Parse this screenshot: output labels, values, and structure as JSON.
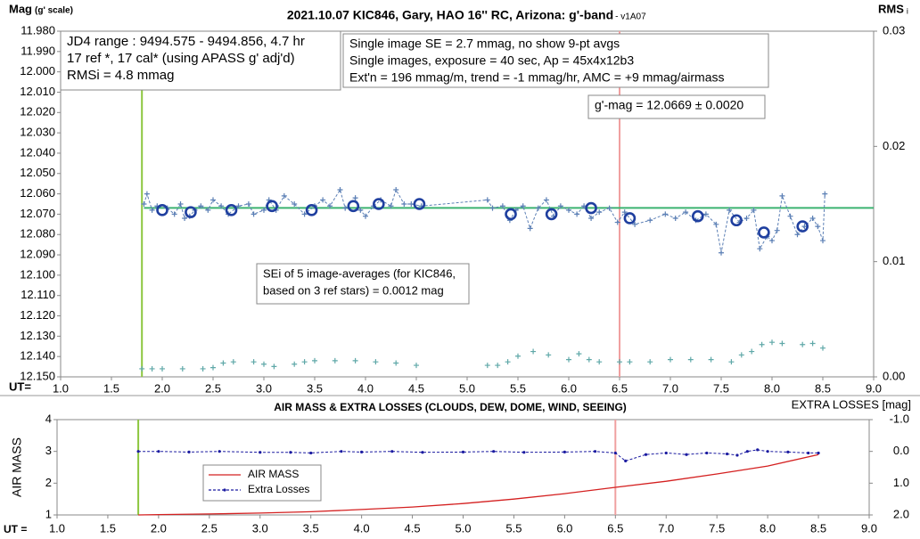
{
  "chart_data": [
    {
      "type": "line",
      "title": "2021.10.07 KIC846, Gary, HAO 16'' RC, Arizona: g'-band",
      "subtitle": " - v1A07",
      "ylabel": "Mag",
      "ylabel_note": "(g' scale)",
      "y2label": "RMS",
      "y2label_note": "i",
      "xlabel": "UT=",
      "xlim": [
        1.0,
        9.0
      ],
      "xticks": [
        {
          "value": 1.0,
          "label": "1.0"
        },
        {
          "value": 1.5,
          "label": "1.5"
        },
        {
          "value": 2.0,
          "label": "2.0"
        },
        {
          "value": 2.5,
          "label": "2.5"
        },
        {
          "value": 3.0,
          "label": "3.0"
        },
        {
          "value": 3.5,
          "label": "3.5"
        },
        {
          "value": 4.0,
          "label": "4.0"
        },
        {
          "value": 4.5,
          "label": "4.5"
        },
        {
          "value": 5.0,
          "label": "5.0"
        },
        {
          "value": 5.5,
          "label": "5.5"
        },
        {
          "value": 6.0,
          "label": "6.0"
        },
        {
          "value": 6.5,
          "label": "6.5"
        },
        {
          "value": 7.0,
          "label": "7.0"
        },
        {
          "value": 7.5,
          "label": "7.5"
        },
        {
          "value": 8.0,
          "label": "8.0"
        },
        {
          "value": 8.5,
          "label": "8.5"
        },
        {
          "value": 9.0,
          "label": "9.0"
        }
      ],
      "ylim": [
        12.15,
        11.98
      ],
      "yticks": [
        {
          "value": 11.98,
          "label": "11.980"
        },
        {
          "value": 11.99,
          "label": "11.990"
        },
        {
          "value": 12.0,
          "label": "12.000"
        },
        {
          "value": 12.01,
          "label": "12.010"
        },
        {
          "value": 12.02,
          "label": "12.020"
        },
        {
          "value": 12.03,
          "label": "12.030"
        },
        {
          "value": 12.04,
          "label": "12.040"
        },
        {
          "value": 12.05,
          "label": "12.050"
        },
        {
          "value": 12.06,
          "label": "12.060"
        },
        {
          "value": 12.07,
          "label": "12.070"
        },
        {
          "value": 12.08,
          "label": "12.080"
        },
        {
          "value": 12.09,
          "label": "12.090"
        },
        {
          "value": 12.1,
          "label": "12.100"
        },
        {
          "value": 12.11,
          "label": "12.110"
        },
        {
          "value": 12.12,
          "label": "12.120"
        },
        {
          "value": 12.13,
          "label": "12.130"
        },
        {
          "value": 12.14,
          "label": "12.140"
        },
        {
          "value": 12.15,
          "label": "12.150"
        }
      ],
      "y2lim": [
        0.0,
        0.03
      ],
      "y2ticks": [
        {
          "value": 0.0,
          "label": "0.00"
        },
        {
          "value": 0.01,
          "label": "0.01"
        },
        {
          "value": 0.02,
          "label": "0.02"
        },
        {
          "value": 0.03,
          "label": "0.03"
        }
      ],
      "grid": false,
      "vlines": [
        {
          "value": 1.8,
          "color": "#8cc63f"
        },
        {
          "value": 6.5,
          "color": "#f0a0a0"
        }
      ],
      "hlines": [
        {
          "value": 12.0669,
          "color": "#3cb371"
        }
      ],
      "series": [
        {
          "color": "#5b7fb5",
          "marker": "plus",
          "line": "dashed",
          "x": [
            1.82,
            1.85,
            1.9,
            1.95,
            2.05,
            2.12,
            2.18,
            2.22,
            2.27,
            2.32,
            2.38,
            2.45,
            2.5,
            2.58,
            2.65,
            2.75,
            2.85,
            2.9,
            3.0,
            3.05,
            3.12,
            3.2,
            3.3,
            3.4,
            3.5,
            3.58,
            3.65,
            3.75,
            3.8,
            3.9,
            3.95,
            4.0,
            4.08,
            4.15,
            4.25,
            4.3,
            4.38,
            4.45,
            4.55,
            5.2,
            5.25,
            5.35,
            5.42,
            5.48,
            5.55,
            5.62,
            5.7,
            5.78,
            5.85,
            5.92,
            6.0,
            6.08,
            6.15,
            6.22,
            6.3,
            6.4,
            6.48,
            6.55,
            6.65,
            6.8,
            6.95,
            7.05,
            7.15,
            7.25,
            7.35,
            7.45,
            7.5,
            7.58,
            7.68,
            7.75,
            7.82,
            7.88,
            7.95,
            8.0,
            8.05,
            8.1,
            8.18,
            8.25,
            8.32,
            8.4,
            8.45,
            8.5,
            8.52
          ],
          "values": [
            12.065,
            12.06,
            12.068,
            12.066,
            12.067,
            12.07,
            12.065,
            12.072,
            12.071,
            12.068,
            12.066,
            12.068,
            12.063,
            12.066,
            12.07,
            12.066,
            12.065,
            12.07,
            12.068,
            12.063,
            12.068,
            12.061,
            12.065,
            12.07,
            12.066,
            12.063,
            12.066,
            12.058,
            12.067,
            12.062,
            12.068,
            12.071,
            12.066,
            12.063,
            12.066,
            12.058,
            12.065,
            12.065,
            12.066,
            12.063,
            12.067,
            12.066,
            12.073,
            12.068,
            12.066,
            12.077,
            12.067,
            12.063,
            12.071,
            12.066,
            12.068,
            12.07,
            12.066,
            12.072,
            12.069,
            12.067,
            12.074,
            12.069,
            12.075,
            12.073,
            12.07,
            12.072,
            12.069,
            12.073,
            12.07,
            12.075,
            12.089,
            12.068,
            12.074,
            12.072,
            12.068,
            12.087,
            12.081,
            12.083,
            12.078,
            12.061,
            12.071,
            12.08,
            12.076,
            12.072,
            12.076,
            12.083,
            12.06
          ]
        },
        {
          "color": "#1f3f9f",
          "marker": "circle",
          "line": "none",
          "x": [
            2.0,
            2.28,
            2.68,
            3.08,
            3.47,
            3.88,
            4.13,
            4.53,
            5.43,
            5.83,
            6.22,
            6.6,
            7.27,
            7.65,
            7.92,
            8.3
          ],
          "values": [
            12.068,
            12.069,
            12.068,
            12.066,
            12.068,
            12.066,
            12.065,
            12.065,
            12.07,
            12.07,
            12.067,
            12.072,
            12.071,
            12.073,
            12.079,
            12.076
          ]
        },
        {
          "color": "#5fa8a8",
          "marker": "plus",
          "line": "none",
          "axis": "y2",
          "x": [
            1.8,
            1.9,
            2.0,
            2.2,
            2.4,
            2.5,
            2.6,
            2.7,
            2.9,
            3.0,
            3.1,
            3.3,
            3.4,
            3.5,
            3.7,
            3.9,
            4.1,
            4.3,
            4.5,
            5.2,
            5.3,
            5.4,
            5.5,
            5.65,
            5.8,
            6.0,
            6.1,
            6.2,
            6.3,
            6.5,
            6.6,
            6.8,
            7.0,
            7.2,
            7.4,
            7.6,
            7.7,
            7.8,
            7.9,
            8.0,
            8.1,
            8.3,
            8.4,
            8.5
          ],
          "values": [
            0.0007,
            0.0007,
            0.0007,
            0.0007,
            0.0007,
            0.0008,
            0.0012,
            0.0013,
            0.0013,
            0.0011,
            0.0009,
            0.0011,
            0.0013,
            0.0014,
            0.0014,
            0.0014,
            0.0013,
            0.0012,
            0.001,
            0.001,
            0.001,
            0.0013,
            0.0018,
            0.0022,
            0.0019,
            0.0015,
            0.002,
            0.0015,
            0.0013,
            0.0013,
            0.0013,
            0.0013,
            0.0015,
            0.0015,
            0.0015,
            0.0013,
            0.0019,
            0.0022,
            0.0028,
            0.003,
            0.0029,
            0.0028,
            0.0029,
            0.0025
          ]
        }
      ],
      "annotations": [
        {
          "lines": [
            "JD4 range : 9494.575 - 9494.856,  4.7  hr",
            "17 ref *, 17 cal* (using APASS g' adj'd)",
            "RMSi = 4.8 mmag"
          ]
        },
        {
          "lines": [
            "Single image SE = 2.7 mmag, no show  9-pt avgs",
            "Single images, exposure = 40 sec, Ap = 45x4x12b3",
            "Ext'n = 196 mmag/m, trend = -1 mmag/hr, AMC = +9 mmag/airmass"
          ]
        },
        {
          "lines": [
            "g'-mag = 12.0669 ± 0.0020"
          ]
        },
        {
          "lines": [
            "SEi of 5 image-averages (for KIC846,",
            "based on 3 ref stars) = 0.0012 mag"
          ]
        }
      ]
    },
    {
      "type": "line",
      "title": "AIR MASS & EXTRA LOSSES (CLOUDS, DEW, DOME, WIND, SEEING)",
      "ylabel": "AIR MASS",
      "y2label": "EXTRA LOSSES [mag]",
      "xlabel": "UT =",
      "xlim": [
        1.0,
        9.0
      ],
      "xticks": [
        {
          "value": 1.0,
          "label": "1.0"
        },
        {
          "value": 1.5,
          "label": "1.5"
        },
        {
          "value": 2.0,
          "label": "2.0"
        },
        {
          "value": 2.5,
          "label": "2.5"
        },
        {
          "value": 3.0,
          "label": "3.0"
        },
        {
          "value": 3.5,
          "label": "3.5"
        },
        {
          "value": 4.0,
          "label": "4.0"
        },
        {
          "value": 4.5,
          "label": "4.5"
        },
        {
          "value": 5.0,
          "label": "5.0"
        },
        {
          "value": 5.5,
          "label": "5.5"
        },
        {
          "value": 6.0,
          "label": "6.0"
        },
        {
          "value": 6.5,
          "label": "6.5"
        },
        {
          "value": 7.0,
          "label": "7.0"
        },
        {
          "value": 7.5,
          "label": "7.5"
        },
        {
          "value": 8.0,
          "label": "8.0"
        },
        {
          "value": 8.5,
          "label": "8.5"
        },
        {
          "value": 9.0,
          "label": "9.0"
        }
      ],
      "ylim": [
        1,
        4
      ],
      "yticks": [
        1,
        2,
        3,
        4
      ],
      "y2lim": [
        2.0,
        -1.0
      ],
      "y2ticks": [
        {
          "value": -1.0,
          "label": "-1.0"
        },
        {
          "value": 0.0,
          "label": "0.0"
        },
        {
          "value": 1.0,
          "label": "1.0"
        },
        {
          "value": 2.0,
          "label": "2.0"
        }
      ],
      "grid": false,
      "legend": "lower left",
      "vlines": [
        {
          "value": 1.8,
          "color": "#8cc63f"
        },
        {
          "value": 6.5,
          "color": "#f0a0a0"
        }
      ],
      "series": [
        {
          "name": "AIR MASS",
          "color": "#d42020",
          "marker": "none",
          "line": "solid",
          "x": [
            1.8,
            2.0,
            2.5,
            3.0,
            3.5,
            4.0,
            4.5,
            5.0,
            5.5,
            6.0,
            6.5,
            7.0,
            7.5,
            8.0,
            8.5
          ],
          "values": [
            1.0,
            1.01,
            1.03,
            1.06,
            1.1,
            1.17,
            1.25,
            1.36,
            1.5,
            1.67,
            1.87,
            2.06,
            2.29,
            2.54,
            2.9
          ]
        },
        {
          "name": "Extra Losses",
          "color": "#1a1aa0",
          "marker": "dot",
          "line": "dashed",
          "axis": "y2",
          "x": [
            1.8,
            2.0,
            2.3,
            2.6,
            3.0,
            3.3,
            3.5,
            3.8,
            4.0,
            4.3,
            4.6,
            5.0,
            5.3,
            5.6,
            6.0,
            6.3,
            6.5,
            6.6,
            6.8,
            7.0,
            7.2,
            7.4,
            7.6,
            7.7,
            7.8,
            7.9,
            8.0,
            8.2,
            8.4,
            8.5
          ],
          "values": [
            0.0,
            0.0,
            0.02,
            0.0,
            0.03,
            0.03,
            0.05,
            0.0,
            0.02,
            0.0,
            0.03,
            0.02,
            0.0,
            0.03,
            0.02,
            0.0,
            0.05,
            0.3,
            0.1,
            0.05,
            0.1,
            0.05,
            0.08,
            0.12,
            0.0,
            -0.05,
            0.0,
            0.02,
            0.05,
            0.05
          ]
        }
      ]
    }
  ]
}
